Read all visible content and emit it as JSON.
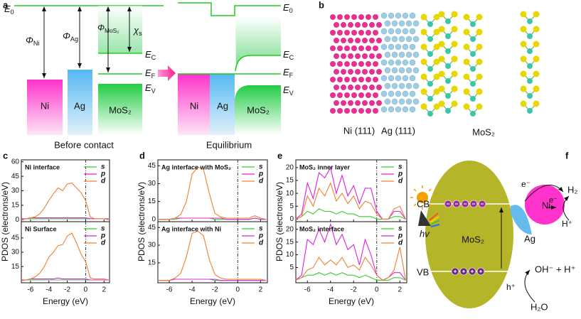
{
  "panel_a": {
    "label": "a",
    "e0": {
      "main": "E",
      "sub": "0"
    },
    "ec": {
      "main": "E",
      "sub": "C"
    },
    "ef": {
      "main": "E",
      "sub": "F"
    },
    "ev": {
      "main": "E",
      "sub": "V"
    },
    "phi_ni": {
      "main": "Φ",
      "sub": "Ni"
    },
    "phi_ag": {
      "main": "Φ",
      "sub": "Ag"
    },
    "phi_mos2": {
      "main": "Φ",
      "sub": "MoS₂"
    },
    "chi_s": {
      "main": "χ",
      "sub": "s"
    },
    "boxes": [
      "Ni",
      "Ag",
      "MoS₂"
    ],
    "before": "Before contact",
    "after": "Equilibrium"
  },
  "panel_b": {
    "label": "b",
    "labels": [
      "Ni (111)",
      "Ag (111)",
      "MoS₂"
    ]
  },
  "pdos": {
    "panel_labels": [
      "c",
      "d",
      "e"
    ],
    "y_label": "PDOS (electrons/eV)",
    "x_label": "Energy (eV)"
  },
  "chart_data": [
    {
      "type": "line",
      "title": "Ni interface",
      "x": [
        -7,
        -6.5,
        -6,
        -5.5,
        -5,
        -4.5,
        -4,
        -3.5,
        -3,
        -2.5,
        -2,
        -1.5,
        -1,
        -0.5,
        0,
        0.5,
        1,
        1.5,
        2,
        2.5
      ],
      "xlim": [
        -7,
        2.6
      ],
      "xticks": [
        -6,
        -4,
        -2,
        0,
        2
      ],
      "ylim": [
        -2,
        62
      ],
      "yticks": [
        0,
        15,
        30,
        45,
        60
      ],
      "series": [
        {
          "name": "s",
          "color": "#33cc33",
          "values": [
            1,
            1,
            1,
            1,
            1,
            1,
            1,
            1,
            1,
            1,
            1,
            1,
            1,
            1,
            1,
            1,
            1,
            1,
            1,
            1
          ]
        },
        {
          "name": "p",
          "color": "#e020e0",
          "values": [
            1,
            1,
            2,
            2,
            2,
            2,
            2,
            2,
            2,
            2,
            2,
            2,
            2,
            2,
            2,
            1,
            1,
            1,
            1,
            1
          ]
        },
        {
          "name": "d",
          "color": "#f08030",
          "values": [
            0,
            1,
            2,
            3,
            6,
            12,
            20,
            27,
            33,
            30,
            37,
            38,
            33,
            28,
            20,
            3,
            1,
            1,
            1,
            0
          ]
        }
      ]
    },
    {
      "type": "line",
      "title": "Ni Surface",
      "x": [
        -7,
        -6.5,
        -6,
        -5.5,
        -5,
        -4.5,
        -4,
        -3.5,
        -3,
        -2.5,
        -2,
        -1.5,
        -1,
        -0.5,
        0,
        0.5,
        1,
        1.5,
        2,
        2.5
      ],
      "xlim": [
        -7,
        2.6
      ],
      "xticks": [
        -6,
        -4,
        -2,
        0,
        2
      ],
      "ylim": [
        -2,
        62
      ],
      "yticks": [
        15,
        30,
        45
      ],
      "series": [
        {
          "name": "s",
          "color": "#33cc33",
          "values": [
            1,
            1,
            1,
            1,
            1,
            1,
            1,
            1,
            1,
            1,
            1,
            1,
            1,
            1,
            1,
            1,
            1,
            1,
            1,
            1
          ]
        },
        {
          "name": "p",
          "color": "#e020e0",
          "values": [
            1,
            1,
            2,
            2,
            2,
            2,
            2,
            2,
            3,
            2,
            2,
            2,
            2,
            2,
            2,
            1,
            1,
            1,
            1,
            1
          ]
        },
        {
          "name": "d",
          "color": "#f08030",
          "values": [
            0,
            1,
            2,
            4,
            8,
            15,
            25,
            30,
            37,
            38,
            47,
            50,
            40,
            28,
            20,
            3,
            2,
            2,
            2,
            1
          ]
        }
      ]
    },
    {
      "type": "line",
      "title": "Ag interface with MoS₂",
      "x": [
        -7,
        -6.5,
        -6,
        -5.5,
        -5,
        -4.5,
        -4,
        -3.5,
        -3,
        -2.5,
        -2,
        -1.5,
        -1,
        -0.5,
        0,
        0.5,
        1,
        1.5,
        2,
        2.5
      ],
      "xlim": [
        -7,
        2.6
      ],
      "xticks": [
        -6,
        -4,
        -2,
        0,
        2
      ],
      "ylim": [
        -2,
        50
      ],
      "yticks": [
        0,
        15,
        30,
        45
      ],
      "series": [
        {
          "name": "s",
          "color": "#33cc33",
          "values": [
            0,
            0,
            0,
            0,
            1,
            1,
            1,
            1,
            1,
            1,
            0,
            0,
            0,
            0,
            0,
            0,
            0,
            1,
            0,
            0
          ]
        },
        {
          "name": "p",
          "color": "#e020e0",
          "values": [
            0,
            0,
            0,
            1,
            1,
            1,
            1,
            1,
            1,
            1,
            1,
            1,
            0,
            0,
            0,
            0,
            0,
            1,
            0,
            0
          ]
        },
        {
          "name": "d",
          "color": "#f08030",
          "values": [
            0,
            0,
            0,
            1,
            4,
            15,
            38,
            44,
            42,
            22,
            5,
            2,
            1,
            1,
            1,
            1,
            1,
            3,
            1,
            0
          ]
        }
      ]
    },
    {
      "type": "line",
      "title": "Ag interface with Ni",
      "x": [
        -7,
        -6.5,
        -6,
        -5.5,
        -5,
        -4.5,
        -4,
        -3.5,
        -3,
        -2.5,
        -2,
        -1.5,
        -1,
        -0.5,
        0,
        0.5,
        1,
        1.5,
        2,
        2.5
      ],
      "xlim": [
        -7,
        2.6
      ],
      "xticks": [
        -6,
        -4,
        -2,
        0,
        2
      ],
      "ylim": [
        -2,
        50
      ],
      "yticks": [
        15,
        30,
        45
      ],
      "series": [
        {
          "name": "s",
          "color": "#33cc33",
          "values": [
            0,
            0,
            0,
            1,
            1,
            1,
            1,
            1,
            1,
            1,
            0,
            0,
            0,
            0,
            0,
            0,
            0,
            0,
            0,
            0
          ]
        },
        {
          "name": "p",
          "color": "#e020e0",
          "values": [
            0,
            0,
            0,
            1,
            1,
            1,
            1,
            1,
            1,
            1,
            1,
            0,
            0,
            0,
            0,
            0,
            0,
            0,
            0,
            0
          ]
        },
        {
          "name": "d",
          "color": "#f08030",
          "values": [
            0,
            0,
            0,
            2,
            6,
            20,
            40,
            42,
            38,
            18,
            5,
            2,
            1,
            1,
            1,
            1,
            1,
            1,
            1,
            0
          ]
        }
      ]
    },
    {
      "type": "line",
      "title": "MoS₂ inner layer",
      "x": [
        -7,
        -6.5,
        -6,
        -5.5,
        -5,
        -4.5,
        -4,
        -3.5,
        -3,
        -2.5,
        -2,
        -1.5,
        -1,
        -0.5,
        0,
        0.5,
        1,
        1.5,
        2,
        2.5
      ],
      "xlim": [
        -7,
        2.6
      ],
      "xticks": [
        -6,
        -4,
        -2,
        0,
        2
      ],
      "ylim": [
        -1,
        23
      ],
      "yticks": [
        0,
        5,
        10,
        15,
        20
      ],
      "series": [
        {
          "name": "s",
          "color": "#33cc33",
          "values": [
            0,
            1,
            3,
            2,
            4,
            3,
            3,
            2,
            3,
            2,
            2,
            1,
            1,
            1,
            0,
            0,
            0,
            1,
            1,
            0
          ]
        },
        {
          "name": "p",
          "color": "#e020e0",
          "values": [
            0,
            2,
            14,
            8,
            18,
            16,
            20,
            10,
            17,
            9,
            13,
            6,
            12,
            12,
            3,
            0,
            0,
            3,
            3,
            0
          ]
        },
        {
          "name": "d",
          "color": "#f08030",
          "values": [
            0,
            1,
            9,
            5,
            12,
            9,
            14,
            7,
            10,
            6,
            9,
            4,
            7,
            6,
            2,
            0,
            0,
            4,
            5,
            0
          ]
        }
      ]
    },
    {
      "type": "line",
      "title": "MoS₂ interface",
      "x": [
        -7,
        -6.5,
        -6,
        -5.5,
        -5,
        -4.5,
        -4,
        -3.5,
        -3,
        -2.5,
        -2,
        -1.5,
        -1,
        -0.5,
        0,
        0.5,
        1,
        1.5,
        2,
        2.5
      ],
      "xlim": [
        -7,
        2.6
      ],
      "xticks": [
        -6,
        -4,
        -2,
        0,
        2
      ],
      "ylim": [
        -1,
        23
      ],
      "yticks": [
        5,
        10,
        15,
        20
      ],
      "series": [
        {
          "name": "s",
          "color": "#33cc33",
          "values": [
            0,
            1,
            2,
            2,
            3,
            2,
            3,
            2,
            3,
            2,
            2,
            1,
            2,
            1,
            0,
            0,
            0,
            1,
            1,
            0
          ]
        },
        {
          "name": "p",
          "color": "#e020e0",
          "values": [
            0,
            2,
            16,
            14,
            20,
            15,
            22,
            14,
            18,
            12,
            14,
            6,
            16,
            10,
            2,
            0,
            1,
            3,
            3,
            0
          ]
        },
        {
          "name": "d",
          "color": "#f08030",
          "values": [
            0,
            1,
            4,
            5,
            9,
            6,
            8,
            6,
            9,
            5,
            6,
            4,
            9,
            6,
            2,
            0,
            1,
            4,
            13,
            0
          ]
        }
      ]
    }
  ],
  "panel_f": {
    "label": "f",
    "cb": "CB",
    "vb": "VB",
    "hv": "hv",
    "mos2": "MoS₂",
    "ni": "Ni",
    "ag": "Ag",
    "e1": "e⁻",
    "e2": "e⁻",
    "h2": "H₂",
    "h_plus": "H⁺",
    "h_hole": "h⁺",
    "oh": "OH⁻ + H⁺",
    "h2o": "H₂O"
  }
}
